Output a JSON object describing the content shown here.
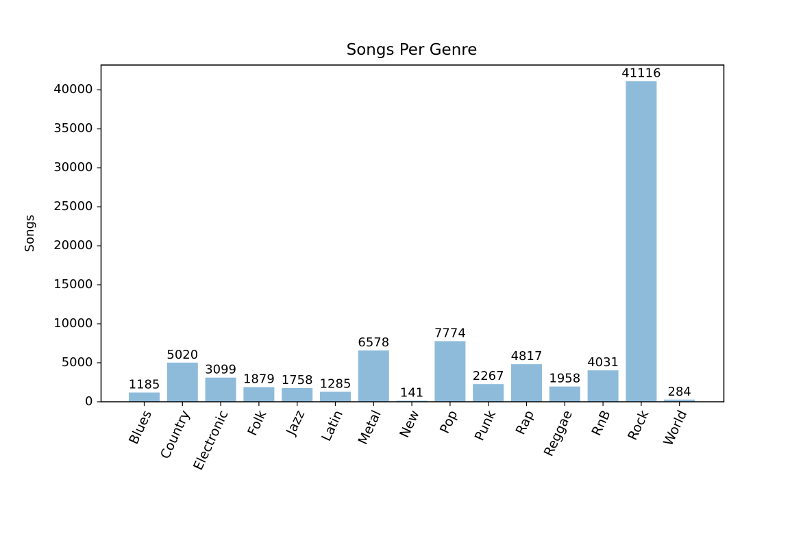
{
  "chart_data": {
    "type": "bar",
    "title": "Songs Per Genre",
    "xlabel": "",
    "ylabel": "Songs",
    "categories": [
      "Blues",
      "Country",
      "Electronic",
      "Folk",
      "Jazz",
      "Latin",
      "Metal",
      "New",
      "Pop",
      "Punk",
      "Rap",
      "Reggae",
      "RnB",
      "Rock",
      "World"
    ],
    "values": [
      1185,
      5020,
      3099,
      1879,
      1758,
      1285,
      6578,
      141,
      7774,
      2267,
      4817,
      1958,
      4031,
      41116,
      284
    ],
    "yticks": [
      0,
      5000,
      10000,
      15000,
      20000,
      25000,
      30000,
      35000,
      40000
    ],
    "ylim": [
      0,
      43172
    ],
    "bar_color": "#8fbbdb",
    "data_labels": true,
    "xtick_rotation_deg": 65,
    "grid": false,
    "legend": "none"
  }
}
